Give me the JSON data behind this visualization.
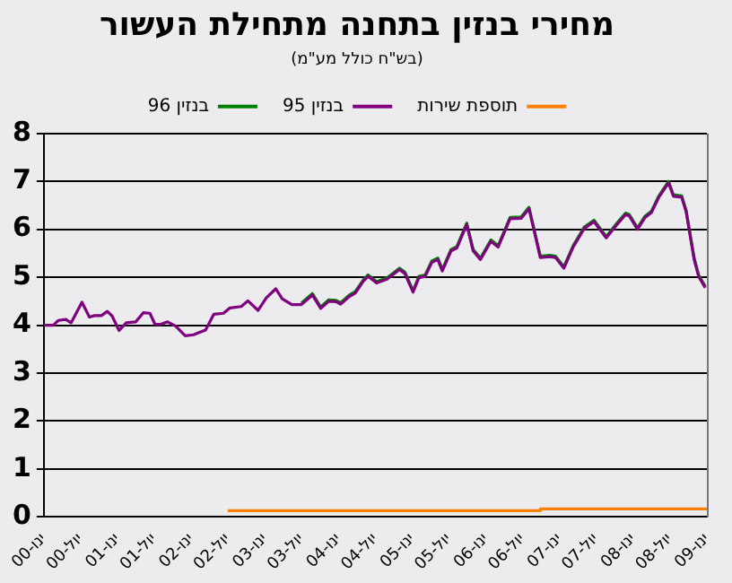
{
  "chart_data": {
    "type": "line",
    "title": "מחירי בנזין בתחנה מתחילת העשור",
    "subtitle": "(בש\"ח כולל מע\"מ)",
    "series": [
      {
        "name": "תוספת שירות",
        "color": "#ff8000",
        "x": [
          "2002-07-01",
          "2006-09-28",
          "2006-09-28",
          "2009-01-01"
        ],
        "values": [
          0.13,
          0.13,
          0.17,
          0.17
        ]
      },
      {
        "name": "בנזין 95",
        "color": "#800080",
        "x": [
          "2000-01-01",
          "2000-02-17",
          "2000-03-13",
          "2000-04-19",
          "2000-05-15",
          "2000-07-08",
          "2000-08-14",
          "2000-09-09",
          "2000-10-12",
          "2000-11-11",
          "2000-12-05",
          "2001-01-08",
          "2001-02-13",
          "2001-04-01",
          "2001-05-08",
          "2001-06-10",
          "2001-07-05",
          "2001-08-03",
          "2001-09-06",
          "2001-10-16",
          "2001-12-02",
          "2002-01-12",
          "2002-02-17",
          "2002-03-13",
          "2002-04-23",
          "2002-06-10",
          "2002-07-12",
          "2002-09-06",
          "2002-10-09",
          "2002-11-28",
          "2003-01-08",
          "2003-02-24",
          "2003-03-28",
          "2003-05-15",
          "2003-07-01",
          "2003-08-25",
          "2003-10-05",
          "2003-11-14",
          "2003-12-20",
          "2004-01-12",
          "2004-02-24",
          "2004-03-24",
          "2004-05-04",
          "2004-05-27",
          "2004-07-08",
          "2004-08-29",
          "2004-10-30",
          "2004-11-25",
          "2005-01-05",
          "2005-02-03",
          "2005-03-06",
          "2005-04-08",
          "2005-05-08",
          "2005-05-30",
          "2005-07-12",
          "2005-08-10",
          "2005-09-28",
          "2005-10-30",
          "2005-12-05",
          "2006-01-26",
          "2006-03-03",
          "2006-05-01",
          "2006-06-25",
          "2006-08-03",
          "2006-09-28",
          "2006-11-14",
          "2006-12-13",
          "2007-01-23",
          "2007-03-10",
          "2007-05-04",
          "2007-06-21",
          "2007-08-21",
          "2007-10-09",
          "2007-11-25",
          "2007-12-13",
          "2008-01-23",
          "2008-02-28",
          "2008-04-01",
          "2008-05-08",
          "2008-06-25",
          "2008-07-19",
          "2008-08-29",
          "2008-09-20",
          "2008-10-30",
          "2008-11-21",
          "2008-12-24"
        ],
        "values": [
          4.0,
          4.0,
          4.1,
          4.12,
          4.05,
          4.48,
          4.17,
          4.2,
          4.2,
          4.29,
          4.19,
          3.89,
          4.05,
          4.07,
          4.26,
          4.25,
          4.02,
          4.02,
          4.07,
          3.98,
          3.78,
          3.8,
          3.86,
          3.9,
          4.23,
          4.25,
          4.36,
          4.39,
          4.51,
          4.31,
          4.57,
          4.76,
          4.55,
          4.43,
          4.43,
          4.63,
          4.35,
          4.5,
          4.49,
          4.44,
          4.6,
          4.67,
          4.92,
          5.02,
          4.88,
          4.96,
          5.16,
          5.08,
          4.69,
          4.99,
          5.02,
          5.31,
          5.37,
          5.13,
          5.55,
          5.61,
          6.1,
          5.55,
          5.37,
          5.75,
          5.63,
          6.22,
          6.23,
          6.43,
          5.41,
          5.43,
          5.41,
          5.19,
          5.63,
          6.02,
          6.16,
          5.82,
          6.08,
          6.31,
          6.28,
          6.0,
          6.24,
          6.35,
          6.67,
          6.97,
          6.69,
          6.67,
          6.37,
          5.37,
          5.02,
          4.78
        ]
      },
      {
        "name": "בנזין 96",
        "color": "#008000",
        "x": [
          "2003-07-01",
          "2003-08-25",
          "2003-10-05",
          "2003-11-14",
          "2003-12-20",
          "2004-01-12",
          "2004-02-24",
          "2004-03-24",
          "2004-05-04",
          "2004-05-27",
          "2004-07-08",
          "2004-08-29",
          "2004-10-30",
          "2004-11-25",
          "2005-01-05",
          "2005-02-03",
          "2005-03-06",
          "2005-04-08",
          "2005-05-08",
          "2005-05-30",
          "2005-07-12",
          "2005-08-10",
          "2005-09-28",
          "2005-10-30",
          "2005-12-05",
          "2006-01-26",
          "2006-03-03",
          "2006-05-01",
          "2006-06-25",
          "2006-08-03",
          "2006-09-28",
          "2006-11-14",
          "2006-12-13",
          "2007-01-23",
          "2007-03-10",
          "2007-05-04",
          "2007-06-21",
          "2007-08-21",
          "2007-10-09",
          "2007-11-25",
          "2007-12-13",
          "2008-01-23",
          "2008-02-28",
          "2008-04-01",
          "2008-05-08",
          "2008-06-25",
          "2008-07-19",
          "2008-08-29",
          "2008-09-20",
          "2008-10-30",
          "2008-11-21",
          "2008-12-24"
        ],
        "values": [
          4.46,
          4.66,
          4.38,
          4.53,
          4.52,
          4.47,
          4.63,
          4.7,
          4.95,
          5.05,
          4.91,
          4.99,
          5.19,
          5.11,
          4.72,
          5.02,
          5.05,
          5.34,
          5.4,
          5.16,
          5.58,
          5.64,
          6.13,
          5.58,
          5.4,
          5.78,
          5.66,
          6.25,
          6.26,
          6.46,
          5.44,
          5.46,
          5.44,
          5.22,
          5.66,
          6.05,
          6.19,
          5.85,
          6.11,
          6.34,
          6.31,
          6.03,
          6.27,
          6.38,
          6.7,
          7.0,
          6.72,
          6.7,
          6.4,
          5.4,
          5.05,
          4.81
        ]
      }
    ],
    "xlim": [
      "2000-01-01",
      "2009-01-01"
    ],
    "xticks": [
      {
        "value": "2000-01",
        "label": "ינו-00"
      },
      {
        "value": "2000-07",
        "label": "יול-00"
      },
      {
        "value": "2001-01",
        "label": "ינו-01"
      },
      {
        "value": "2001-07",
        "label": "יול-01"
      },
      {
        "value": "2002-01",
        "label": "ינו-02"
      },
      {
        "value": "2002-07",
        "label": "יול-02"
      },
      {
        "value": "2003-01",
        "label": "ינו-03"
      },
      {
        "value": "2003-07",
        "label": "יול-03"
      },
      {
        "value": "2004-01",
        "label": "ינו-04"
      },
      {
        "value": "2004-07",
        "label": "יול-04"
      },
      {
        "value": "2005-01",
        "label": "ינו-05"
      },
      {
        "value": "2005-07",
        "label": "יול-05"
      },
      {
        "value": "2006-01",
        "label": "ינו-06"
      },
      {
        "value": "2006-07",
        "label": "יול-06"
      },
      {
        "value": "2007-01",
        "label": "ינו-07"
      },
      {
        "value": "2007-07",
        "label": "יול-07"
      },
      {
        "value": "2008-01",
        "label": "ינו-08"
      },
      {
        "value": "2008-07",
        "label": "יול-08"
      },
      {
        "value": "2009-01",
        "label": "ינו-09"
      }
    ],
    "ylim": [
      0,
      8
    ],
    "yticks": [
      0,
      1,
      2,
      3,
      4,
      5,
      6,
      7,
      8
    ],
    "grid": "y",
    "legend": "top",
    "marker": "none",
    "line_style": "solid"
  }
}
